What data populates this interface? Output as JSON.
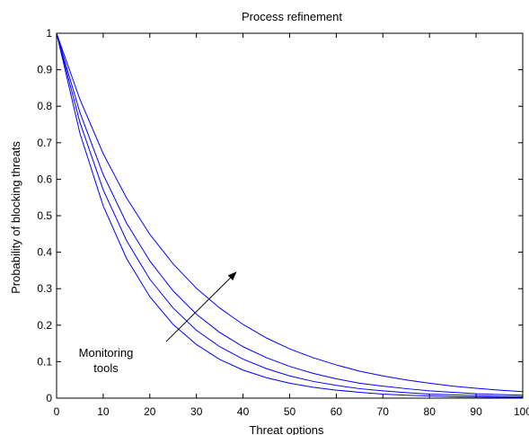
{
  "colors": {
    "series": "#0000ff",
    "axes": "#000000",
    "background": "#ffffff"
  },
  "chart_data": {
    "type": "line",
    "title": "Process refinement",
    "xlabel": "Threat options",
    "ylabel": "Probability of blocking threats",
    "xlim": [
      0,
      100
    ],
    "ylim": [
      0,
      1
    ],
    "x_ticks": [
      0,
      10,
      20,
      30,
      40,
      50,
      60,
      70,
      80,
      90,
      100
    ],
    "y_ticks": [
      0,
      0.1,
      0.2,
      0.3,
      0.4,
      0.5,
      0.6,
      0.7,
      0.8,
      0.9,
      1
    ],
    "x_tick_labels": [
      "0",
      "10",
      "20",
      "30",
      "40",
      "50",
      "60",
      "70",
      "80",
      "90",
      "100"
    ],
    "y_tick_labels": [
      "0",
      "0.1",
      "0.2",
      "0.3",
      "0.4",
      "0.5",
      "0.6",
      "0.7",
      "0.8",
      "0.9",
      "1"
    ],
    "grid": false,
    "box": true,
    "x": [
      0,
      5,
      10,
      15,
      20,
      25,
      30,
      35,
      40,
      45,
      50,
      55,
      60,
      65,
      70,
      75,
      80,
      85,
      90,
      95,
      100
    ],
    "series": [
      {
        "values": [
          1.0,
          0.819,
          0.67,
          0.549,
          0.449,
          0.368,
          0.301,
          0.247,
          0.202,
          0.165,
          0.135,
          0.111,
          0.091,
          0.074,
          0.061,
          0.05,
          0.041,
          0.033,
          0.027,
          0.022,
          0.018
        ]
      },
      {
        "values": [
          1.0,
          0.783,
          0.613,
          0.48,
          0.376,
          0.294,
          0.23,
          0.18,
          0.141,
          0.111,
          0.087,
          0.068,
          0.053,
          0.041,
          0.033,
          0.026,
          0.02,
          0.016,
          0.012,
          0.01,
          0.008
        ]
      },
      {
        "values": [
          1.0,
          0.756,
          0.571,
          0.432,
          0.326,
          0.247,
          0.186,
          0.141,
          0.107,
          0.081,
          0.061,
          0.046,
          0.035,
          0.026,
          0.02,
          0.015,
          0.011,
          0.009,
          0.007,
          0.005,
          0.004
        ]
      },
      {
        "values": [
          1.0,
          0.726,
          0.527,
          0.383,
          0.278,
          0.202,
          0.147,
          0.106,
          0.077,
          0.056,
          0.041,
          0.03,
          0.022,
          0.016,
          0.011,
          0.008,
          0.006,
          0.004,
          0.003,
          0.002,
          0.002
        ]
      }
    ],
    "annotations": [
      {
        "text_lines": [
          "Monitoring",
          "tools"
        ],
        "arrow_from": [
          23.5,
          0.155
        ],
        "arrow_to": [
          38.5,
          0.345
        ]
      }
    ]
  }
}
